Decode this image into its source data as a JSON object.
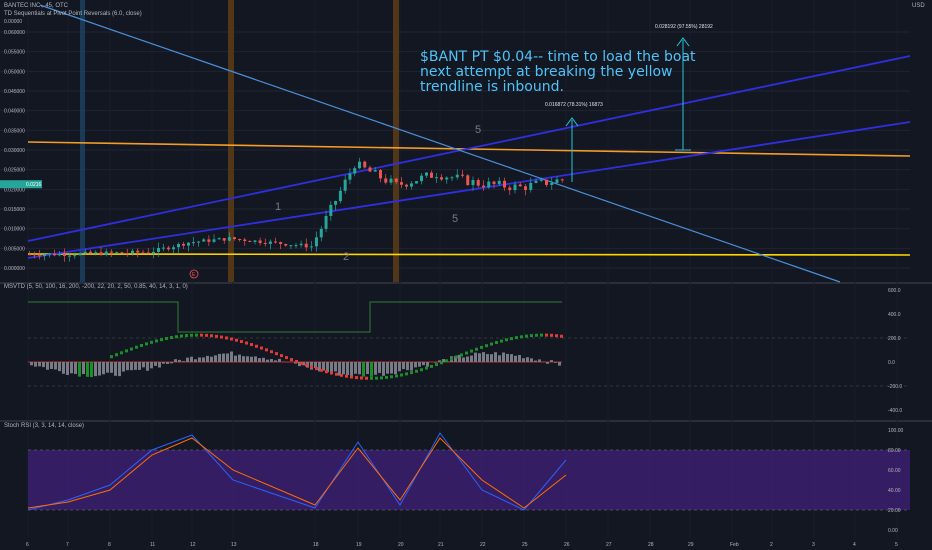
{
  "header": {
    "title": "BANTEC INC., 45, OTC",
    "indicator": "TD Sequentials at Pivot Point Reversals (6.0, close)",
    "currency": "USD",
    "small_price": "0.00000"
  },
  "annotation": {
    "line1": "$BANT PT $0.04-- time to load the boat",
    "line2": "next attempt at breaking the yellow",
    "line3": "trendline is inbound."
  },
  "measures": [
    {
      "label": "0.016872 (78.31%) 16873"
    },
    {
      "label": "0.028192 (97.55%) 28192"
    }
  ],
  "main_axis": {
    "ticks": [
      "0.060000",
      "0.055000",
      "0.050000",
      "0.045000",
      "0.040000",
      "0.035000",
      "0.030000",
      "0.025000",
      "0.020000",
      "0.015000",
      "0.010000",
      "0.005000",
      "0.000000"
    ],
    "last_price_label": "0.0216"
  },
  "panels": {
    "msvtd": {
      "title": "MSVTD (5, 50, 100, 16, 200, -200, 22, 20, 2, 50, 0.85, 40, 14, 3, 1, 0)",
      "ticks": [
        "600.0",
        "400.0",
        "200.0",
        "0.0",
        "-200.0",
        "-400.0"
      ]
    },
    "stoch": {
      "title": "Stoch RSI (3, 3, 14, 14, close)",
      "ticks": [
        "100.00",
        "80.00",
        "60.00",
        "40.00",
        "20.00",
        "0.00"
      ]
    }
  },
  "x_axis": {
    "ticks": [
      "6",
      "7",
      "8",
      "11",
      "12",
      "13",
      "18",
      "19",
      "20",
      "21",
      "22",
      "25",
      "26",
      "27",
      "28",
      "29",
      "Feb",
      "2",
      "3",
      "4",
      "5"
    ]
  },
  "td_labels": {
    "n1": "1",
    "n2": "2",
    "n5a": "5",
    "n5b": "5",
    "e_marker": "E"
  },
  "chart_data": {
    "type": "line",
    "title": "BANTEC INC., 45, OTC",
    "xlabel": "",
    "ylabel": "",
    "ylim": [
      0.0,
      0.06
    ],
    "categories": [
      "6",
      "7",
      "8",
      "11",
      "12",
      "13",
      "18",
      "19",
      "20",
      "21",
      "22",
      "25",
      "26"
    ],
    "series": [
      {
        "values": [
          0.0035,
          0.0035,
          0.0038,
          0.004,
          0.0065,
          0.0075,
          0.0055,
          0.0265,
          0.021,
          0.024,
          0.0215,
          0.0205,
          0.0225
        ]
      }
    ],
    "stoch_rsi": {
      "ylim": [
        0,
        100
      ],
      "k": [
        20,
        30,
        45,
        80,
        95,
        50,
        22,
        88,
        25,
        97,
        40,
        20,
        70
      ],
      "d": [
        22,
        28,
        40,
        75,
        92,
        60,
        25,
        82,
        30,
        92,
        50,
        22,
        55
      ]
    },
    "msvtd": {
      "ylim": [
        -450,
        620
      ]
    }
  }
}
